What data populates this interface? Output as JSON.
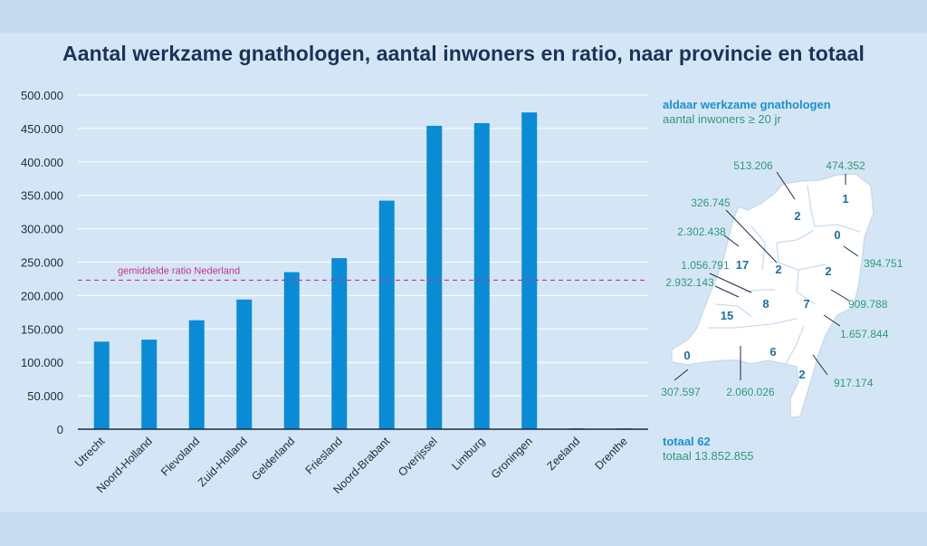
{
  "title": "Aantal werkzame gnathologen, aantal inwoners en ratio, naar provincie en totaal",
  "chart_data": {
    "type": "bar",
    "title": "Aantal werkzame gnathologen, aantal inwoners en ratio, naar provincie en totaal",
    "categories": [
      "Utrecht",
      "Noord-Holland",
      "Flevoland",
      "Zuid-Holland",
      "Gelderland",
      "Friesland",
      "Noord-Brabant",
      "Overijssel",
      "Limburg",
      "Groningen",
      "Zeeland",
      "Drenthe"
    ],
    "values": [
      131000,
      134000,
      163000,
      194000,
      235000,
      256000,
      342000,
      454000,
      458000,
      474000,
      0,
      0
    ],
    "yticks": [
      "500.000",
      "450.000",
      "400.000",
      "350.000",
      "300.000",
      "250.000",
      "200.000",
      "150.000",
      "100.000",
      "50.000",
      "0"
    ],
    "ylim": [
      0,
      500000
    ],
    "reference_line": {
      "label": "gemiddelde ratio Nederland",
      "value": 223000
    },
    "colors": {
      "bar": "#0a8bd6",
      "reference": "#c4338a",
      "grid": "#ffffff",
      "axis": "#1a2b45"
    }
  },
  "legend": {
    "title": "aldaar werkzame gnathologen",
    "subtitle": "aantal inwoners ≥ 20 jr"
  },
  "map": {
    "regions": [
      {
        "province": "Groningen",
        "count": "1",
        "population": "474.352"
      },
      {
        "province": "Friesland",
        "count": "2",
        "population": "513.206"
      },
      {
        "province": "Drenthe",
        "count": "0",
        "population": "394.751"
      },
      {
        "province": "Flevoland",
        "count": "2",
        "population": "326.745"
      },
      {
        "province": "Noord-Holland",
        "count": "17",
        "population": "2.302.438"
      },
      {
        "province": "Overijssel",
        "count": "2",
        "population": "909.788"
      },
      {
        "province": "Utrecht",
        "count": "8",
        "population": "1.056.791"
      },
      {
        "province": "Zuid-Holland",
        "count": "15",
        "population": "2.932.143"
      },
      {
        "province": "Gelderland",
        "count": "7",
        "population": "1.657.844"
      },
      {
        "province": "Zeeland",
        "count": "0",
        "population": "307.597"
      },
      {
        "province": "Noord-Brabant",
        "count": "6",
        "population": "2.060.026"
      },
      {
        "province": "Limburg",
        "count": "2",
        "population": "917.174"
      }
    ]
  },
  "totals": {
    "title": "totaal 62",
    "subtitle": "totaal 13.852.855"
  }
}
